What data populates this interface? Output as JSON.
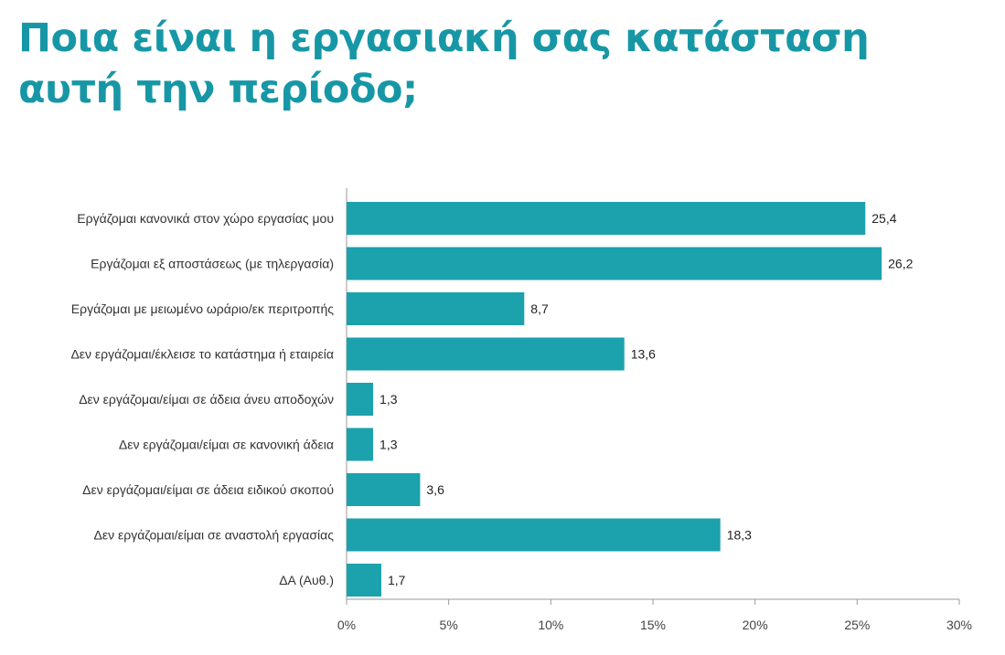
{
  "title": {
    "line1": "Ποια είναι η εργασιακή σας κατάσταση",
    "line2": "αυτή την περίοδο;"
  },
  "colors": {
    "title": "#1797a6",
    "bar": "#1ba2ad",
    "axis": "#9a9a9a"
  },
  "chart_data": {
    "type": "bar",
    "orientation": "horizontal",
    "categories": [
      "Εργάζομαι κανονικά στον χώρο εργασίας μου",
      "Εργάζομαι εξ αποστάσεως (με τηλεργασία)",
      "Εργάζομαι με μειωμένο ωράριο/εκ περιτροπής",
      "Δεν εργάζομαι/έκλεισε το κατάστημα ή εταιρεία",
      "Δεν εργάζομαι/είμαι σε άδεια άνευ αποδοχών",
      "Δεν εργάζομαι/είμαι σε κανονική άδεια",
      "Δεν εργάζομαι/είμαι σε άδεια ειδικού σκοπού",
      "Δεν εργάζομαι/είμαι σε αναστολή εργασίας",
      "ΔΑ (Αυθ.)"
    ],
    "values": [
      25.4,
      26.2,
      8.7,
      13.6,
      1.3,
      1.3,
      3.6,
      18.3,
      1.7
    ],
    "value_labels": [
      "25,4",
      "26,2",
      "8,7",
      "13,6",
      "1,3",
      "1,3",
      "3,6",
      "18,3",
      "1,7"
    ],
    "xlim": [
      0,
      30
    ],
    "xticks": [
      0,
      5,
      10,
      15,
      20,
      25,
      30
    ],
    "xtick_labels": [
      "0%",
      "5%",
      "10%",
      "15%",
      "20%",
      "25%",
      "30%"
    ],
    "xlabel": "",
    "ylabel": "",
    "grid": false,
    "legend": "none"
  }
}
